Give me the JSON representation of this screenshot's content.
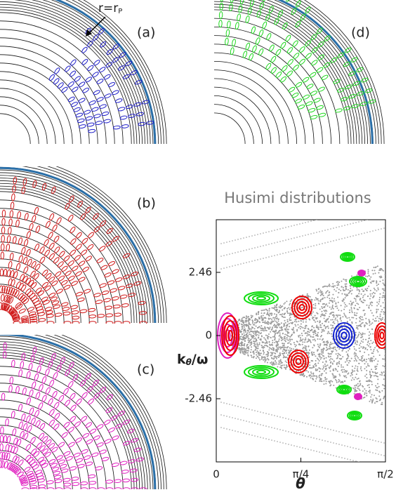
{
  "panels": [
    "(a)",
    "(b)",
    "(c)",
    "(d)"
  ],
  "annotation": {
    "text": "r=r",
    "subscript": "P"
  },
  "chart_data": {
    "type": "husimi",
    "title": "Husimi distributions",
    "xlabel": "θ",
    "ylabel": {
      "base": "k",
      "subscript": "θ",
      "rest": "/ω"
    },
    "xlim": [
      0,
      1.5708
    ],
    "xticks": [
      0,
      {
        "value": 0.7854,
        "label": "π/4"
      },
      {
        "value": 1.5708,
        "label": "π/2"
      }
    ],
    "ylim": [
      -4.92,
      4.51
    ],
    "yticks": [
      2.46,
      0,
      -2.46
    ]
  }
}
